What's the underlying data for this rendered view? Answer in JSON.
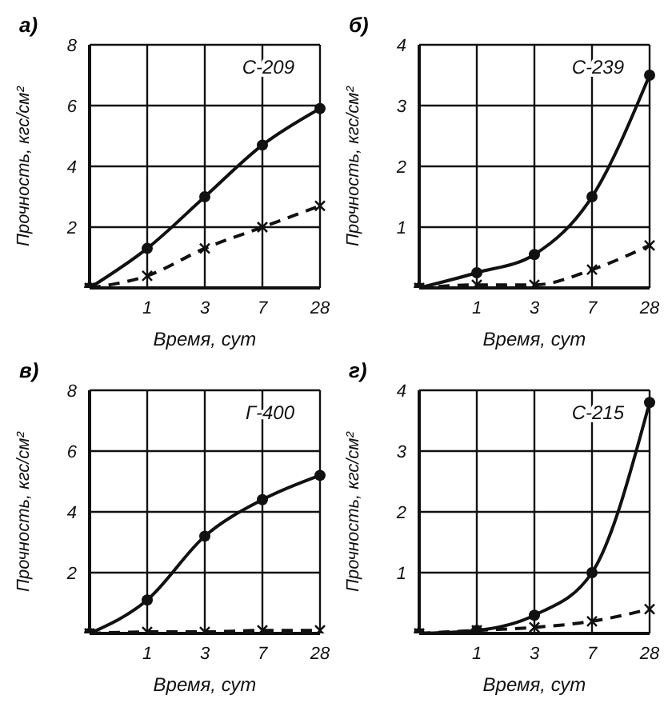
{
  "chart_data": [
    {
      "type": "line",
      "title": "а)",
      "xlabel": "Время, сут",
      "ylabel": "Прочность, кгс/см²",
      "categories": [
        null,
        "1",
        "3",
        "7",
        "28"
      ],
      "ylim": [
        0,
        8
      ],
      "yticks": [
        2,
        4,
        6,
        8
      ],
      "grid": true,
      "legend": false,
      "series": [
        {
          "name": "С-209",
          "color": "#111111",
          "values": [
            0,
            1.3,
            3.0,
            4.7,
            5.9
          ],
          "marker": "circle",
          "line_style": "solid"
        },
        {
          "color": "#111111",
          "values": [
            0,
            0.4,
            1.3,
            2.0,
            2.7
          ],
          "marker": "cross",
          "line_style": "dashed"
        }
      ]
    },
    {
      "type": "line",
      "title": "б)",
      "xlabel": "Время, сут",
      "ylabel": "Прочность, кгс/см²",
      "categories": [
        null,
        "1",
        "3",
        "7",
        "28"
      ],
      "ylim": [
        0,
        4
      ],
      "yticks": [
        1,
        2,
        3,
        4
      ],
      "grid": true,
      "legend": false,
      "series": [
        {
          "name": "С-239",
          "color": "#111111",
          "values": [
            0,
            0.25,
            0.55,
            1.5,
            3.5
          ],
          "marker": "circle",
          "line_style": "solid"
        },
        {
          "color": "#111111",
          "values": [
            0,
            0.05,
            0.05,
            0.3,
            0.7
          ],
          "marker": "cross",
          "line_style": "dashed"
        }
      ]
    },
    {
      "type": "line",
      "title": "в)",
      "xlabel": "Время, сут",
      "ylabel": "Прочность, кгс/см²",
      "categories": [
        null,
        "1",
        "3",
        "7",
        "28"
      ],
      "ylim": [
        0,
        8
      ],
      "yticks": [
        2,
        4,
        6,
        8
      ],
      "grid": true,
      "legend": false,
      "series": [
        {
          "name": "Г-400",
          "color": "#111111",
          "values": [
            0,
            1.1,
            3.2,
            4.4,
            5.2
          ],
          "marker": "circle",
          "line_style": "solid"
        },
        {
          "color": "#111111",
          "values": [
            0,
            0.05,
            0.05,
            0.1,
            0.1
          ],
          "marker": "cross",
          "line_style": "dashed"
        }
      ]
    },
    {
      "type": "line",
      "title": "г)",
      "xlabel": "Время, сут",
      "ylabel": "Прочность, кгс/см²",
      "categories": [
        null,
        "1",
        "3",
        "7",
        "28"
      ],
      "ylim": [
        0,
        4
      ],
      "yticks": [
        1,
        2,
        3,
        4
      ],
      "grid": true,
      "legend": false,
      "series": [
        {
          "name": "С-215",
          "color": "#111111",
          "values": [
            0,
            0.05,
            0.3,
            1.0,
            3.8
          ],
          "marker": "circle",
          "line_style": "solid"
        },
        {
          "color": "#111111",
          "values": [
            0,
            0.05,
            0.1,
            0.2,
            0.4
          ],
          "marker": "cross",
          "line_style": "dashed"
        }
      ]
    }
  ]
}
